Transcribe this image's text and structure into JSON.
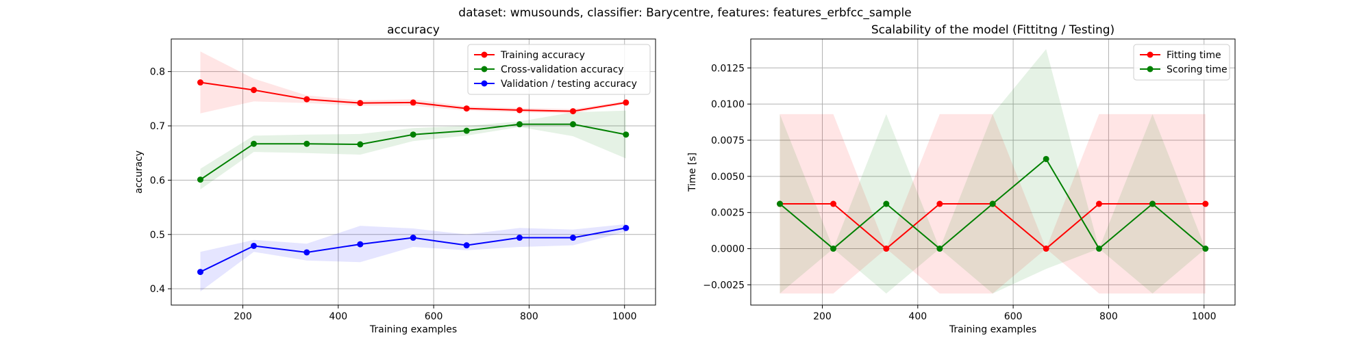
{
  "suptitle": "dataset: wmusounds, classifier: Barycentre, features: features_erbfcc_sample",
  "colors": {
    "red": "#ff0000",
    "green": "#008000",
    "blue": "#0000ff",
    "red_fill": "#ffcccc",
    "green_fill": "#cce6cc",
    "blue_fill": "#ccccff"
  },
  "chart_data": [
    {
      "type": "line",
      "title": "accuracy",
      "xlabel": "Training examples",
      "ylabel": "accuracy",
      "xlim": [
        50,
        1065
      ],
      "ylim": [
        0.37,
        0.86
      ],
      "xticks": [
        200,
        400,
        600,
        800,
        1000
      ],
      "yticks": [
        0.4,
        0.5,
        0.6,
        0.7,
        0.8
      ],
      "ytick_labels": [
        "0.4",
        "0.5",
        "0.6",
        "0.7",
        "0.8"
      ],
      "grid": true,
      "legend": "top-right",
      "x": [
        111,
        223,
        334,
        446,
        557,
        669,
        780,
        892,
        1003
      ],
      "series": [
        {
          "name": "Training accuracy",
          "color": "#ff0000",
          "fill": "#ffcccc",
          "values": [
            0.78,
            0.766,
            0.749,
            0.742,
            0.743,
            0.732,
            0.729,
            0.727,
            0.743
          ],
          "lower": [
            0.723,
            0.745,
            0.742,
            0.737,
            0.737,
            0.728,
            0.725,
            0.723,
            0.74
          ],
          "upper": [
            0.837,
            0.787,
            0.756,
            0.747,
            0.749,
            0.736,
            0.733,
            0.731,
            0.746
          ]
        },
        {
          "name": "Cross-validation accuracy",
          "color": "#008000",
          "fill": "#cce6cc",
          "values": [
            0.601,
            0.667,
            0.667,
            0.666,
            0.684,
            0.691,
            0.703,
            0.703,
            0.684
          ],
          "lower": [
            0.583,
            0.652,
            0.65,
            0.647,
            0.672,
            0.682,
            0.698,
            0.681,
            0.64
          ],
          "upper": [
            0.621,
            0.682,
            0.684,
            0.685,
            0.696,
            0.7,
            0.708,
            0.725,
            0.728
          ]
        },
        {
          "name": "Validation / testing accuracy",
          "color": "#0000ff",
          "fill": "#ccccff",
          "values": [
            0.431,
            0.479,
            0.467,
            0.482,
            0.494,
            0.48,
            0.494,
            0.494,
            0.512
          ],
          "lower": [
            0.395,
            0.468,
            0.452,
            0.449,
            0.477,
            0.471,
            0.477,
            0.48,
            0.505
          ],
          "upper": [
            0.468,
            0.49,
            0.483,
            0.516,
            0.511,
            0.5,
            0.512,
            0.509,
            0.519
          ]
        }
      ]
    },
    {
      "type": "line",
      "title": "Scalability of the model (Fittitng / Testing)",
      "xlabel": "Training examples",
      "ylabel": "Time [s]",
      "xlim": [
        50,
        1065
      ],
      "ylim": [
        -0.0039,
        0.0145
      ],
      "xticks": [
        200,
        400,
        600,
        800,
        1000
      ],
      "yticks": [
        -0.0025,
        0.0,
        0.0025,
        0.005,
        0.0075,
        0.01,
        0.0125
      ],
      "ytick_labels": [
        "−0.0025",
        "0.0000",
        "0.0025",
        "0.0050",
        "0.0075",
        "0.0100",
        "0.0125"
      ],
      "grid": true,
      "legend": "top-right",
      "x": [
        111,
        223,
        334,
        446,
        557,
        669,
        780,
        892,
        1003
      ],
      "series": [
        {
          "name": "Fitting time",
          "color": "#ff0000",
          "fill": "#ffcccc",
          "values": [
            0.0031,
            0.0031,
            0.0,
            0.0031,
            0.0031,
            0.0,
            0.0031,
            0.0031,
            0.0031
          ],
          "lower": [
            -0.0031,
            -0.0031,
            0.0,
            -0.0031,
            -0.0031,
            0.0,
            -0.0031,
            -0.0031,
            -0.0031
          ],
          "upper": [
            0.0093,
            0.0093,
            0.0,
            0.0093,
            0.0093,
            0.0,
            0.0093,
            0.0093,
            0.0093
          ]
        },
        {
          "name": "Scoring time",
          "color": "#008000",
          "fill": "#cce6cc",
          "values": [
            0.0031,
            0.0,
            0.0031,
            0.0,
            0.0031,
            0.0062,
            0.0,
            0.0031,
            0.0
          ],
          "lower": [
            -0.0031,
            0.0,
            -0.0031,
            0.0,
            -0.0031,
            -0.0014,
            0.0,
            -0.0031,
            0.0
          ],
          "upper": [
            0.0093,
            0.0,
            0.0093,
            0.0,
            0.0093,
            0.0138,
            0.0,
            0.0093,
            0.0
          ]
        }
      ]
    }
  ]
}
